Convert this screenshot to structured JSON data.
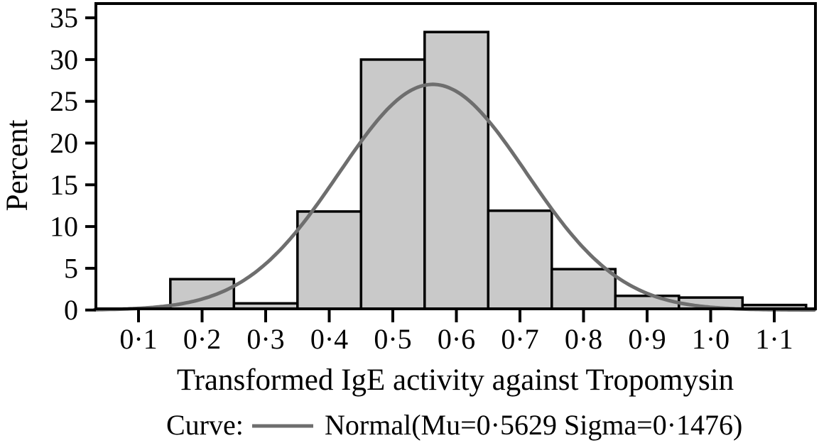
{
  "figure": {
    "background": "#ffffff"
  },
  "chart_data": {
    "type": "bar",
    "subtype": "histogram_with_normal_curve",
    "title": "",
    "xlabel": "Transformed IgE activity against Tropomysin",
    "ylabel": "Percent",
    "grid": false,
    "bin_width": 0.1,
    "bins": [
      {
        "center": 0.2,
        "percent": 3.7
      },
      {
        "center": 0.3,
        "percent": 0.8
      },
      {
        "center": 0.4,
        "percent": 11.8
      },
      {
        "center": 0.5,
        "percent": 30.0
      },
      {
        "center": 0.6,
        "percent": 33.3
      },
      {
        "center": 0.7,
        "percent": 11.9
      },
      {
        "center": 0.8,
        "percent": 4.9
      },
      {
        "center": 0.9,
        "percent": 1.7
      },
      {
        "center": 1.0,
        "percent": 1.5
      },
      {
        "center": 1.1,
        "percent": 0.6
      }
    ],
    "x_ticks": [
      {
        "value": 0.1,
        "label": "0·1"
      },
      {
        "value": 0.2,
        "label": "0·2"
      },
      {
        "value": 0.3,
        "label": "0·3"
      },
      {
        "value": 0.4,
        "label": "0·4"
      },
      {
        "value": 0.5,
        "label": "0·5"
      },
      {
        "value": 0.6,
        "label": "0·6"
      },
      {
        "value": 0.7,
        "label": "0·7"
      },
      {
        "value": 0.8,
        "label": "0·8"
      },
      {
        "value": 0.9,
        "label": "0·9"
      },
      {
        "value": 1.0,
        "label": "1·0"
      },
      {
        "value": 1.1,
        "label": "1·1"
      }
    ],
    "y_ticks": [
      {
        "value": 0,
        "label": "0"
      },
      {
        "value": 5,
        "label": "5"
      },
      {
        "value": 10,
        "label": "10"
      },
      {
        "value": 15,
        "label": "15"
      },
      {
        "value": 20,
        "label": "20"
      },
      {
        "value": 25,
        "label": "25"
      },
      {
        "value": 30,
        "label": "30"
      },
      {
        "value": 35,
        "label": "35"
      }
    ],
    "xlim": [
      0.031,
      1.167
    ],
    "ylim": [
      0,
      36.8
    ],
    "curve": {
      "name": "Normal",
      "mu": 0.5629,
      "sigma": 0.1476,
      "peak_percent": 27.0
    },
    "legend": {
      "prefix": "Curve:",
      "label": "Normal(Mu=0·5629 Sigma=0·1476)"
    },
    "legend_position": "bottom",
    "colors": {
      "bar_fill": "#c9c9c9",
      "bar_stroke": "#000000",
      "curve": "#6e6e6e",
      "axis": "#000000"
    }
  }
}
